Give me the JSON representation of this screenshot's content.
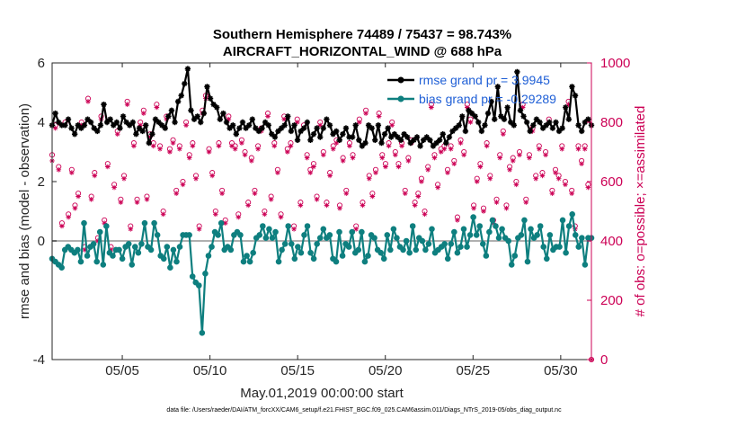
{
  "chart_data": {
    "type": "line",
    "title": "Southern Hemisphere 74489 / 75437 = 98.743%",
    "subtitle": "AIRCRAFT_HORIZONTAL_WIND @ 688 hPa",
    "xlabel": "May.01,2019 00:00:00 start",
    "ylabel_left": "rmse and bias (model - observation)",
    "ylabel_right": "# of obs: o=possible; ×=assimilated",
    "x_range": [
      1,
      31.75
    ],
    "ylim_left": [
      -4,
      6
    ],
    "ylim_right": [
      0,
      1000
    ],
    "x_ticks": [
      {
        "x": 5,
        "label": "05/05"
      },
      {
        "x": 10,
        "label": "05/10"
      },
      {
        "x": 15,
        "label": "05/15"
      },
      {
        "x": 20,
        "label": "05/20"
      },
      {
        "x": 25,
        "label": "05/25"
      },
      {
        "x": 30,
        "label": "05/30"
      }
    ],
    "y_ticks_left": [
      "-4",
      "0",
      "2",
      "4",
      "6"
    ],
    "y_ticks_left_values": [
      -4,
      0,
      2,
      4,
      6
    ],
    "y_ticks_right": [
      "0",
      "200",
      "400",
      "600",
      "800",
      "1000"
    ],
    "y_ticks_right_values": [
      0,
      200,
      400,
      600,
      800,
      1000
    ],
    "colors": {
      "rmse": "#000000",
      "bias": "#0e7f7f",
      "obs": "#cc0055",
      "zero_line": "#b0b0b0",
      "right_axis": "#cc0055",
      "legend_text": "#1f5fd6"
    },
    "series": [
      {
        "name": "rmse grand pr = 3.9945",
        "axis": "left",
        "values": [
          3.9,
          4.3,
          4.0,
          3.9,
          3.9,
          4.1,
          3.8,
          3.6,
          3.9,
          3.8,
          3.9,
          4.1,
          4.0,
          3.8,
          3.7,
          3.9,
          4.6,
          4.0,
          4.1,
          3.9,
          4.0,
          3.8,
          4.2,
          4.0,
          3.9,
          4.0,
          3.6,
          3.8,
          3.7,
          3.9,
          3.3,
          3.6,
          4.1,
          4.0,
          3.9,
          3.8,
          4.2,
          4.4,
          4.0,
          4.7,
          4.9,
          5.3,
          5.8,
          4.4,
          4.1,
          4.2,
          4.0,
          4.3,
          5.2,
          4.8,
          4.6,
          4.5,
          4.1,
          4.3,
          4.0,
          3.8,
          3.9,
          3.6,
          3.8,
          4.0,
          3.8,
          3.9,
          4.1,
          3.8,
          3.7,
          3.8,
          4.0,
          3.9,
          3.6,
          3.5,
          3.7,
          3.8,
          3.9,
          4.2,
          3.7,
          3.9,
          3.4,
          3.7,
          3.8,
          4.0,
          3.4,
          3.6,
          3.8,
          3.5,
          3.8,
          4.1,
          3.9,
          3.6,
          3.7,
          3.4,
          3.6,
          3.8,
          3.5,
          3.5,
          3.9,
          3.4,
          3.2,
          3.3,
          3.9,
          3.8,
          3.4,
          3.9,
          3.3,
          3.6,
          3.8,
          3.5,
          3.6,
          3.5,
          3.4,
          3.6,
          3.5,
          3.3,
          3.4,
          3.5,
          3.2,
          3.4,
          3.5,
          3.4,
          3.2,
          3.3,
          3.4,
          3.6,
          3.3,
          3.5,
          3.7,
          3.8,
          3.9,
          4.2,
          3.7,
          4.4,
          4.3,
          4.2,
          4.0,
          3.7,
          3.9,
          4.3,
          4.7,
          4.1,
          5.2,
          4.2,
          4.1,
          4.5,
          4.0,
          3.9,
          5.7,
          4.4,
          4.2,
          4.0,
          3.7,
          3.9,
          4.1,
          4.0,
          3.8,
          3.9,
          4.0,
          3.8,
          4.0,
          3.7,
          3.8,
          4.5,
          4.1,
          5.2,
          4.9,
          3.9,
          3.7,
          4.0,
          4.1,
          3.9
        ]
      },
      {
        "name": "bias grand pr = -0.29289",
        "axis": "left",
        "values": [
          -0.6,
          -0.7,
          -0.8,
          -0.9,
          -0.3,
          -0.2,
          -0.3,
          -0.4,
          -0.3,
          -0.7,
          0.6,
          -0.5,
          -0.2,
          -0.1,
          -0.7,
          0.3,
          -0.8,
          0.5,
          -0.4,
          -0.5,
          -0.3,
          -0.3,
          -0.6,
          -0.2,
          -0.1,
          -0.8,
          -0.2,
          -0.4,
          -0.1,
          0.6,
          -0.2,
          -0.3,
          0.6,
          0.2,
          -0.5,
          -0.6,
          -0.2,
          -0.9,
          -0.3,
          -0.7,
          -0.2,
          0.2,
          0.2,
          0.2,
          -1.2,
          -1.4,
          -1.5,
          -3.1,
          -1.1,
          -0.5,
          -0.2,
          0.3,
          0.2,
          0.6,
          -0.3,
          -0.2,
          -0.3,
          0.2,
          0.3,
          0.2,
          -0.7,
          -0.5,
          -0.7,
          -0.4,
          0.1,
          0.2,
          0.5,
          0.1,
          0.4,
          0.1,
          0.3,
          -0.7,
          -0.3,
          -0.1,
          0.5,
          -0.1,
          -0.6,
          -0.2,
          -0.4,
          0.2,
          0.5,
          -0.4,
          -0.6,
          -0.1,
          0.1,
          0.4,
          0.1,
          0.2,
          -0.6,
          -0.7,
          0.3,
          -0.5,
          -0.1,
          -0.2,
          0.3,
          -0.4,
          -0.3,
          0.3,
          -0.7,
          -0.5,
          0.2,
          0.1,
          -0.3,
          -0.4,
          -0.6,
          0.2,
          -0.3,
          0.4,
          0.1,
          -0.2,
          -0.3,
          0.0,
          -0.4,
          0.5,
          -0.3,
          0.1,
          0.0,
          -0.3,
          -0.1,
          0.4,
          -0.4,
          -0.3,
          -0.2,
          -0.1,
          -0.6,
          -0.1,
          0.3,
          -0.4,
          -0.2,
          0.4,
          -0.2,
          0.2,
          0.8,
          0.2,
          0.5,
          -0.1,
          -0.5,
          0.3,
          0.7,
          0.5,
          0.1,
          0.4,
          0.1,
          0.0,
          -0.8,
          -0.5,
          0.1,
          0.2,
          0.7,
          -0.7,
          0.4,
          0.1,
          0.2,
          0.5,
          -0.2,
          -0.6,
          0.2,
          -0.3,
          -0.2,
          -0.2,
          0.7,
          -0.4,
          0.5,
          0.9,
          0.2,
          -0.2,
          0.1,
          -0.8,
          0.1,
          0.1
        ]
      },
      {
        "name": "obs_possible",
        "axis": "right",
        "values": [
          690,
          790,
          650,
          460,
          800,
          490,
          640,
          520,
          560,
          800,
          380,
          880,
          550,
          630,
          410,
          820,
          470,
          660,
          380,
          590,
          770,
          540,
          620,
          870,
          450,
          730,
          540,
          800,
          840,
          550,
          760,
          730,
          860,
          720,
          500,
          820,
          710,
          740,
          570,
          720,
          600,
          800,
          690,
          730,
          620,
          450,
          840,
          890,
          710,
          630,
          500,
          730,
          570,
          470,
          820,
          730,
          720,
          490,
          740,
          700,
          530,
          680,
          570,
          720,
          780,
          500,
          830,
          550,
          730,
          640,
          490,
          820,
          710,
          730,
          450,
          810,
          530,
          790,
          690,
          640,
          660,
          550,
          800,
          700,
          530,
          630,
          720,
          740,
          520,
          680,
          570,
          730,
          690,
          450,
          810,
          530,
          840,
          620,
          560,
          640,
          830,
          690,
          660,
          730,
          800,
          700,
          660,
          730,
          570,
          680,
          740,
          530,
          560,
          610,
          500,
          650,
          860,
          690,
          590,
          710,
          720,
          640,
          720,
          670,
          480,
          740,
          700,
          860,
          810,
          520,
          610,
          660,
          510,
          730,
          620,
          470,
          540,
          690,
          770,
          520,
          650,
          680,
          600,
          700,
          860,
          540,
          690,
          780,
          620,
          720,
          630,
          700,
          810,
          570,
          640,
          620,
          720,
          600,
          870,
          570,
          450,
          720,
          670,
          720,
          590,
          0
        ]
      },
      {
        "name": "obs_assimilated",
        "axis": "right",
        "values": [
          670,
          780,
          640,
          450,
          790,
          480,
          630,
          510,
          550,
          790,
          370,
          870,
          540,
          620,
          400,
          810,
          460,
          650,
          370,
          580,
          760,
          530,
          610,
          860,
          440,
          720,
          530,
          790,
          830,
          540,
          750,
          720,
          850,
          710,
          490,
          810,
          700,
          730,
          560,
          710,
          590,
          790,
          680,
          720,
          610,
          440,
          830,
          880,
          700,
          620,
          490,
          720,
          560,
          460,
          810,
          720,
          710,
          480,
          730,
          690,
          520,
          670,
          560,
          710,
          770,
          490,
          820,
          540,
          720,
          630,
          480,
          810,
          700,
          720,
          440,
          800,
          520,
          780,
          680,
          630,
          650,
          540,
          790,
          690,
          520,
          620,
          710,
          730,
          510,
          670,
          560,
          720,
          680,
          440,
          800,
          520,
          830,
          610,
          550,
          630,
          820,
          680,
          650,
          720,
          790,
          690,
          650,
          720,
          560,
          670,
          730,
          520,
          550,
          600,
          490,
          640,
          850,
          680,
          580,
          700,
          710,
          630,
          710,
          660,
          470,
          730,
          690,
          850,
          800,
          510,
          600,
          650,
          500,
          720,
          610,
          460,
          530,
          680,
          760,
          510,
          640,
          670,
          590,
          690,
          850,
          530,
          680,
          770,
          610,
          710,
          620,
          690,
          800,
          560,
          630,
          610,
          710,
          590,
          860,
          560,
          440,
          710,
          660,
          710,
          580,
          0
        ]
      }
    ]
  },
  "footer": "data file: /Users/raeder/DAI/ATM_forcXX/CAM6_setup/f.e21.FHIST_BGC.f09_025.CAM6assim.011/Diags_NTrS_2019-05/obs_diag_output.nc"
}
